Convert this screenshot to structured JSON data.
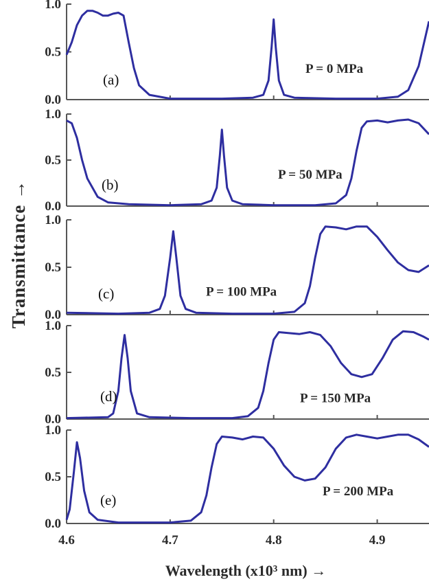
{
  "chart_data": {
    "type": "line",
    "xlabel": "Wavelength (x10³ nm) →",
    "ylabel": "Transmittance →",
    "xlim": [
      4.6,
      4.95
    ],
    "ylim": [
      0,
      1
    ],
    "x_ticks": [
      "4.6",
      "4.7",
      "4.8",
      "4.9"
    ],
    "x_tick_values": [
      4.6,
      4.7,
      4.8,
      4.9
    ],
    "y_ticks": [
      "0.0",
      "0.5",
      "1.0"
    ],
    "y_tick_values": [
      0,
      0.5,
      1
    ],
    "color": "#2e2ea0",
    "panels": [
      {
        "label": "(a)",
        "pressure": "P = 0 MPa",
        "points": [
          [
            4.6,
            0.47
          ],
          [
            4.605,
            0.6
          ],
          [
            4.61,
            0.78
          ],
          [
            4.615,
            0.88
          ],
          [
            4.62,
            0.93
          ],
          [
            4.625,
            0.93
          ],
          [
            4.63,
            0.91
          ],
          [
            4.635,
            0.88
          ],
          [
            4.64,
            0.88
          ],
          [
            4.645,
            0.9
          ],
          [
            4.65,
            0.91
          ],
          [
            4.655,
            0.88
          ],
          [
            4.66,
            0.6
          ],
          [
            4.665,
            0.33
          ],
          [
            4.67,
            0.15
          ],
          [
            4.68,
            0.05
          ],
          [
            4.7,
            0.01
          ],
          [
            4.75,
            0.01
          ],
          [
            4.78,
            0.02
          ],
          [
            4.79,
            0.05
          ],
          [
            4.795,
            0.2
          ],
          [
            4.798,
            0.55
          ],
          [
            4.8,
            0.84
          ],
          [
            4.802,
            0.55
          ],
          [
            4.805,
            0.2
          ],
          [
            4.81,
            0.05
          ],
          [
            4.82,
            0.02
          ],
          [
            4.86,
            0.01
          ],
          [
            4.9,
            0.01
          ],
          [
            4.92,
            0.03
          ],
          [
            4.93,
            0.1
          ],
          [
            4.94,
            0.35
          ],
          [
            4.95,
            0.82
          ]
        ]
      },
      {
        "label": "(b)",
        "pressure": "P = 50 MPa",
        "points": [
          [
            4.6,
            0.93
          ],
          [
            4.605,
            0.9
          ],
          [
            4.61,
            0.74
          ],
          [
            4.615,
            0.5
          ],
          [
            4.62,
            0.3
          ],
          [
            4.63,
            0.1
          ],
          [
            4.64,
            0.04
          ],
          [
            4.66,
            0.02
          ],
          [
            4.7,
            0.01
          ],
          [
            4.73,
            0.02
          ],
          [
            4.74,
            0.06
          ],
          [
            4.745,
            0.2
          ],
          [
            4.748,
            0.55
          ],
          [
            4.75,
            0.83
          ],
          [
            4.752,
            0.55
          ],
          [
            4.755,
            0.2
          ],
          [
            4.76,
            0.06
          ],
          [
            4.77,
            0.02
          ],
          [
            4.8,
            0.01
          ],
          [
            4.84,
            0.01
          ],
          [
            4.86,
            0.03
          ],
          [
            4.87,
            0.12
          ],
          [
            4.875,
            0.3
          ],
          [
            4.88,
            0.6
          ],
          [
            4.885,
            0.85
          ],
          [
            4.89,
            0.92
          ],
          [
            4.9,
            0.93
          ],
          [
            4.91,
            0.91
          ],
          [
            4.92,
            0.93
          ],
          [
            4.93,
            0.94
          ],
          [
            4.94,
            0.9
          ],
          [
            4.95,
            0.78
          ]
        ]
      },
      {
        "label": "(c)",
        "pressure": "P = 100 MPa",
        "points": [
          [
            4.6,
            0.02
          ],
          [
            4.65,
            0.01
          ],
          [
            4.68,
            0.02
          ],
          [
            4.69,
            0.06
          ],
          [
            4.695,
            0.2
          ],
          [
            4.7,
            0.6
          ],
          [
            4.703,
            0.88
          ],
          [
            4.706,
            0.6
          ],
          [
            4.71,
            0.2
          ],
          [
            4.715,
            0.06
          ],
          [
            4.725,
            0.02
          ],
          [
            4.76,
            0.01
          ],
          [
            4.8,
            0.01
          ],
          [
            4.82,
            0.03
          ],
          [
            4.83,
            0.12
          ],
          [
            4.835,
            0.3
          ],
          [
            4.84,
            0.6
          ],
          [
            4.845,
            0.85
          ],
          [
            4.85,
            0.93
          ],
          [
            4.86,
            0.92
          ],
          [
            4.87,
            0.9
          ],
          [
            4.88,
            0.93
          ],
          [
            4.89,
            0.93
          ],
          [
            4.9,
            0.82
          ],
          [
            4.91,
            0.68
          ],
          [
            4.92,
            0.55
          ],
          [
            4.93,
            0.47
          ],
          [
            4.94,
            0.45
          ],
          [
            4.95,
            0.52
          ]
        ]
      },
      {
        "label": "(d)",
        "pressure": "P = 150 MPa",
        "points": [
          [
            4.6,
            0.01
          ],
          [
            4.64,
            0.02
          ],
          [
            4.645,
            0.06
          ],
          [
            4.65,
            0.3
          ],
          [
            4.653,
            0.65
          ],
          [
            4.656,
            0.9
          ],
          [
            4.659,
            0.65
          ],
          [
            4.662,
            0.3
          ],
          [
            4.668,
            0.06
          ],
          [
            4.68,
            0.02
          ],
          [
            4.72,
            0.01
          ],
          [
            4.76,
            0.01
          ],
          [
            4.775,
            0.03
          ],
          [
            4.785,
            0.12
          ],
          [
            4.79,
            0.3
          ],
          [
            4.795,
            0.6
          ],
          [
            4.8,
            0.85
          ],
          [
            4.805,
            0.93
          ],
          [
            4.815,
            0.92
          ],
          [
            4.825,
            0.91
          ],
          [
            4.835,
            0.93
          ],
          [
            4.845,
            0.9
          ],
          [
            4.855,
            0.78
          ],
          [
            4.865,
            0.6
          ],
          [
            4.875,
            0.48
          ],
          [
            4.885,
            0.45
          ],
          [
            4.895,
            0.48
          ],
          [
            4.905,
            0.65
          ],
          [
            4.915,
            0.85
          ],
          [
            4.925,
            0.94
          ],
          [
            4.935,
            0.93
          ],
          [
            4.945,
            0.88
          ],
          [
            4.95,
            0.85
          ]
        ]
      },
      {
        "label": "(e)",
        "pressure": "P = 200 MPa",
        "points": [
          [
            4.6,
            0.04
          ],
          [
            4.603,
            0.15
          ],
          [
            4.607,
            0.55
          ],
          [
            4.61,
            0.87
          ],
          [
            4.613,
            0.7
          ],
          [
            4.617,
            0.35
          ],
          [
            4.622,
            0.12
          ],
          [
            4.63,
            0.04
          ],
          [
            4.65,
            0.01
          ],
          [
            4.7,
            0.01
          ],
          [
            4.72,
            0.03
          ],
          [
            4.73,
            0.12
          ],
          [
            4.735,
            0.3
          ],
          [
            4.74,
            0.6
          ],
          [
            4.745,
            0.85
          ],
          [
            4.75,
            0.93
          ],
          [
            4.76,
            0.92
          ],
          [
            4.77,
            0.9
          ],
          [
            4.78,
            0.93
          ],
          [
            4.79,
            0.92
          ],
          [
            4.8,
            0.8
          ],
          [
            4.81,
            0.62
          ],
          [
            4.82,
            0.5
          ],
          [
            4.83,
            0.46
          ],
          [
            4.84,
            0.48
          ],
          [
            4.85,
            0.6
          ],
          [
            4.86,
            0.8
          ],
          [
            4.87,
            0.92
          ],
          [
            4.88,
            0.95
          ],
          [
            4.89,
            0.93
          ],
          [
            4.9,
            0.91
          ],
          [
            4.91,
            0.93
          ],
          [
            4.92,
            0.95
          ],
          [
            4.93,
            0.95
          ],
          [
            4.94,
            0.9
          ],
          [
            4.95,
            0.82
          ]
        ]
      }
    ]
  }
}
